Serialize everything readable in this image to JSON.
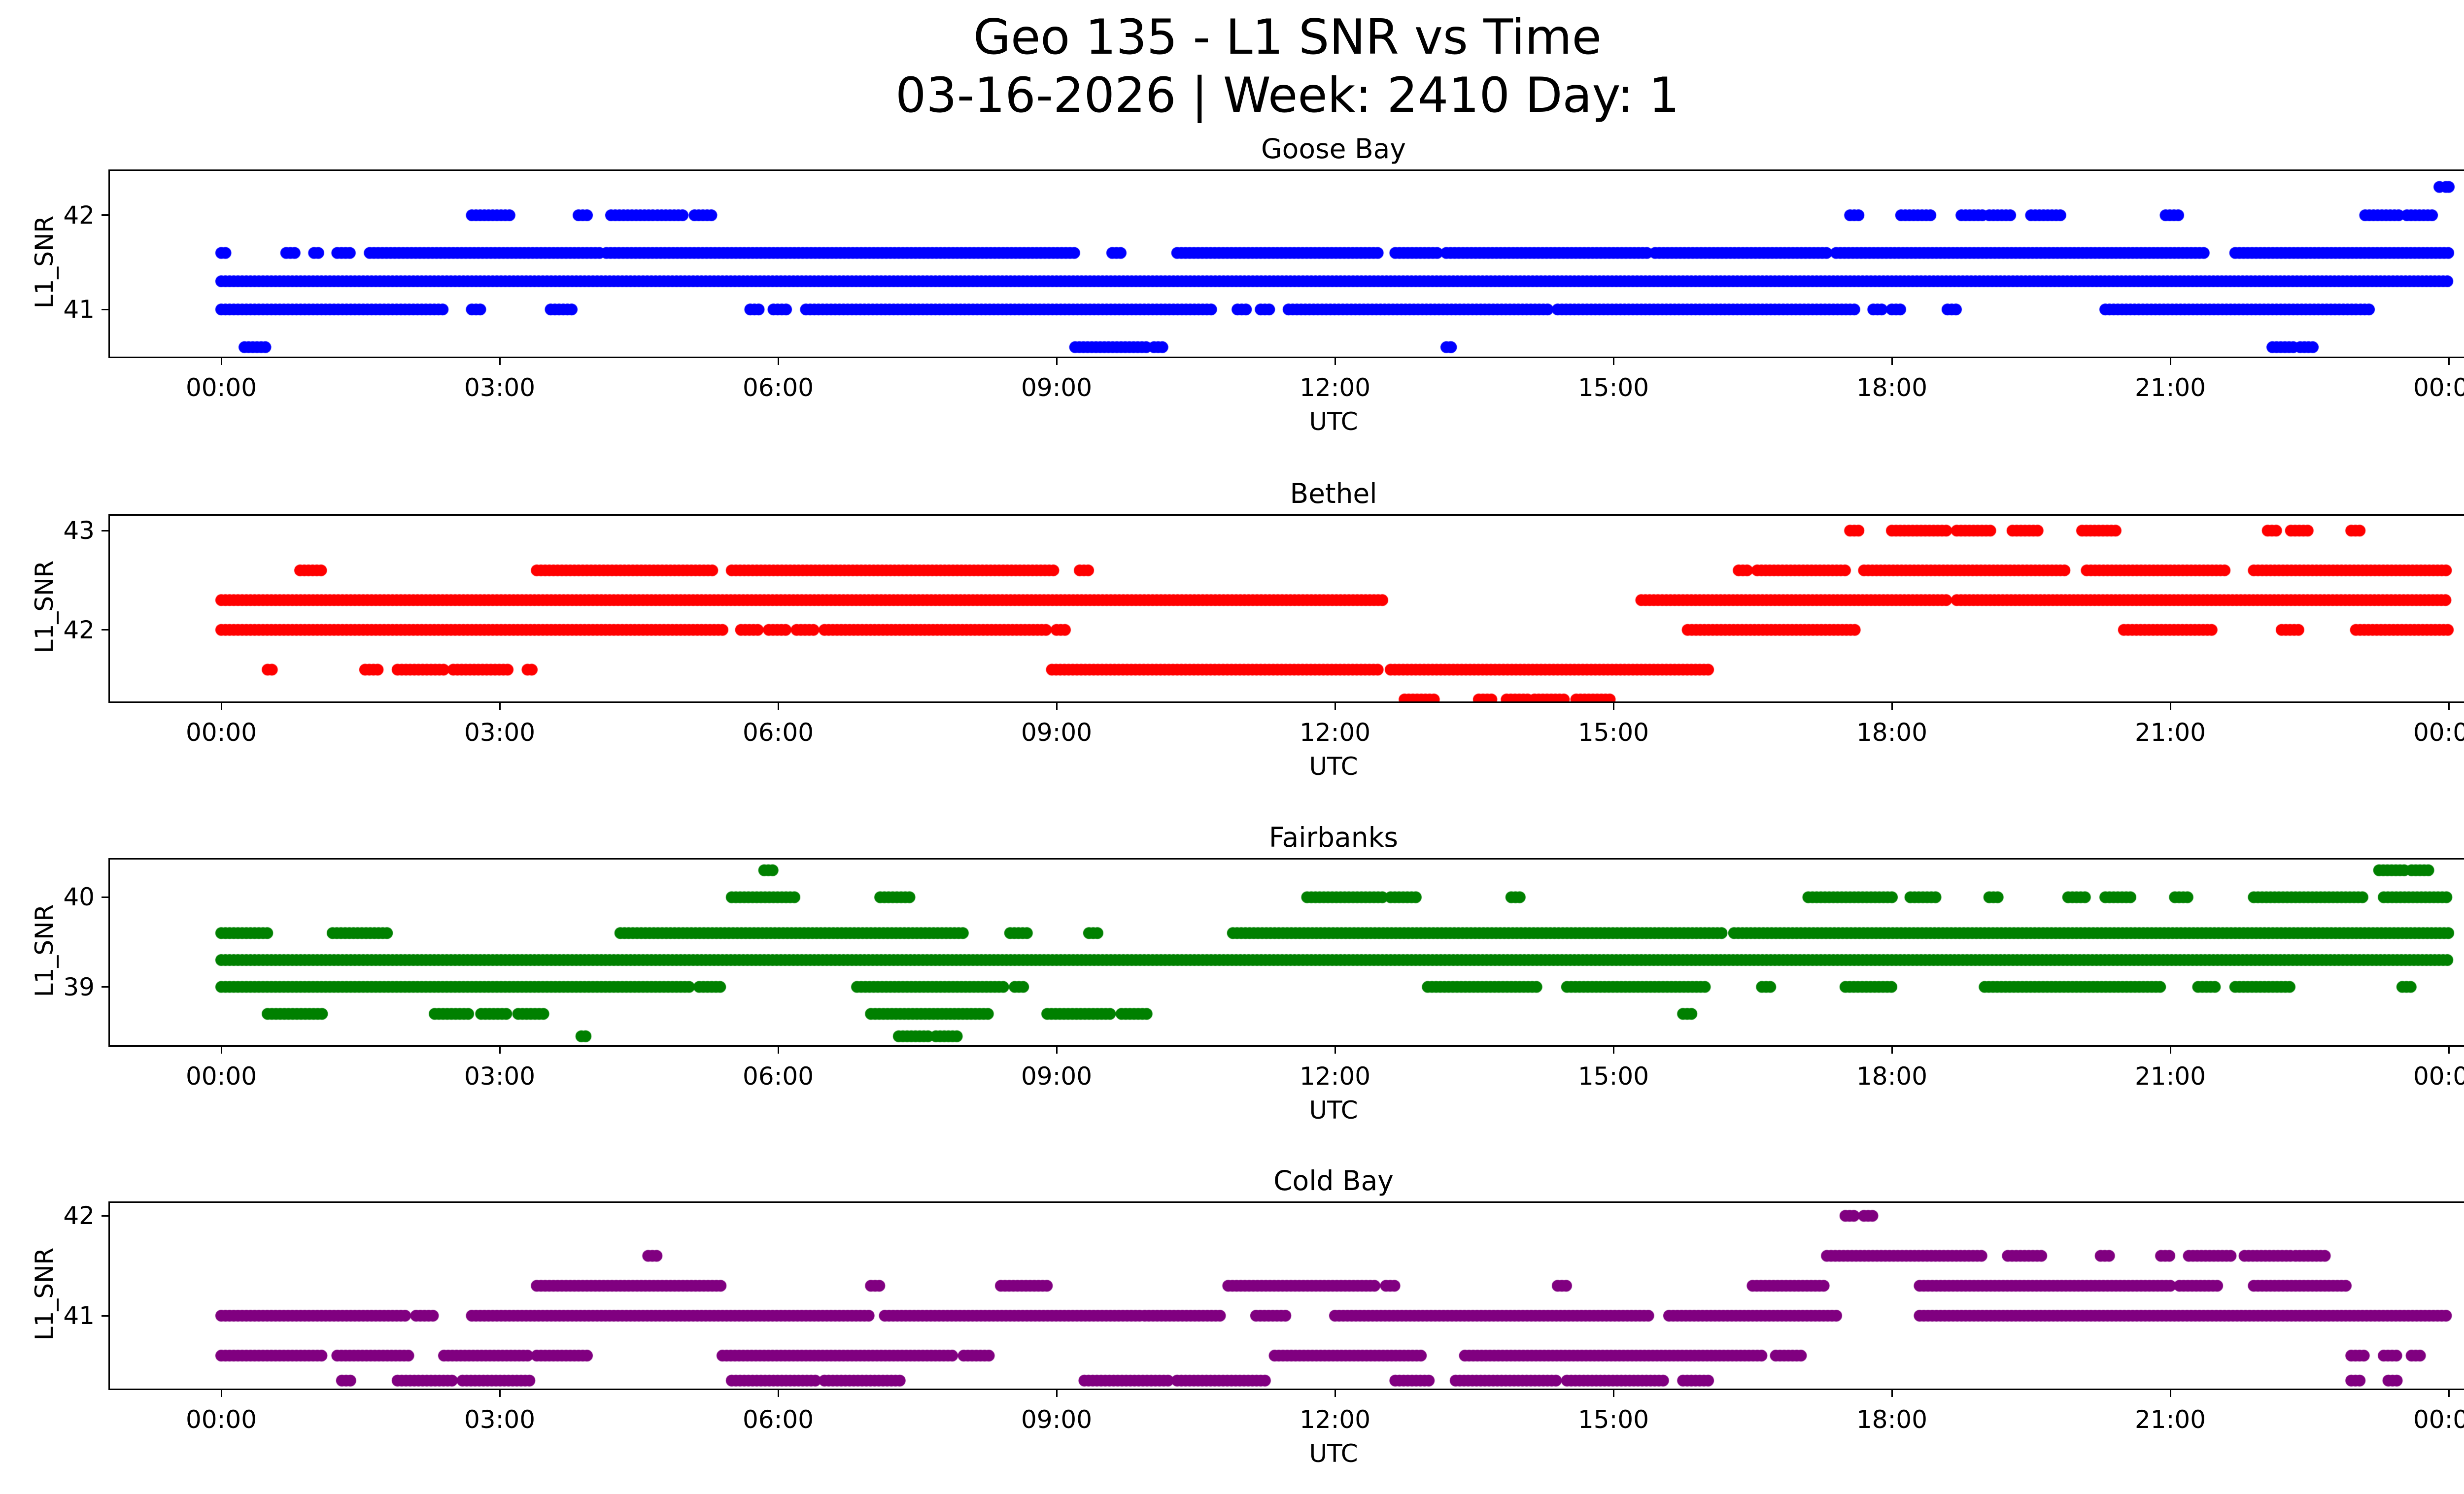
{
  "figure": {
    "title_line1": "Geo 135 - L1 SNR vs Time",
    "title_line2": "03-16-2026 | Week: 2410 Day: 1"
  },
  "chart_data": [
    {
      "type": "scatter",
      "title": "Goose Bay",
      "xlabel": "UTC",
      "ylabel": "L1_SNR",
      "color": "#0000ff",
      "xlim": [
        -1.2,
        25.2
      ],
      "ylim": [
        40.5,
        42.47
      ],
      "xticks": [
        0,
        3,
        6,
        9,
        12,
        15,
        18,
        21,
        24
      ],
      "xtick_labels": [
        "00:00",
        "03:00",
        "06:00",
        "09:00",
        "12:00",
        "15:00",
        "18:00",
        "21:00",
        "00:00"
      ],
      "yticks": [
        41,
        42
      ],
      "ytick_labels": [
        "41",
        "42"
      ],
      "marker_radius": 12,
      "sample_step_hours": 0.045,
      "bands": [
        {
          "snr": 42.0,
          "spans": [
            [
              2.7,
              3.12
            ],
            [
              3.85,
              3.95
            ],
            [
              4.2,
              4.65
            ],
            [
              4.7,
              5.0
            ],
            [
              5.1,
              5.3
            ],
            [
              17.55,
              17.65
            ],
            [
              18.1,
              18.45
            ],
            [
              18.75,
              19.0
            ],
            [
              19.05,
              19.3
            ],
            [
              19.5,
              19.85
            ],
            [
              20.95,
              21.1
            ],
            [
              23.1,
              23.5
            ],
            [
              23.55,
              23.85
            ]
          ]
        },
        {
          "snr": 41.6,
          "spans": [
            [
              0.0,
              0.08
            ],
            [
              0.7,
              0.82
            ],
            [
              1.0,
              1.08
            ],
            [
              1.25,
              1.4
            ],
            [
              1.6,
              4.1
            ],
            [
              4.15,
              9.2
            ],
            [
              9.6,
              9.7
            ],
            [
              10.3,
              12.5
            ],
            [
              12.65,
              13.1
            ],
            [
              13.2,
              15.4
            ],
            [
              15.45,
              17.3
            ],
            [
              17.4,
              21.4
            ],
            [
              21.7,
              24.0
            ]
          ]
        },
        {
          "snr": 41.3,
          "spans": [
            [
              0,
              24
            ]
          ]
        },
        {
          "snr": 41.0,
          "spans": [
            [
              0,
              2.4
            ],
            [
              2.7,
              2.82
            ],
            [
              3.55,
              3.78
            ],
            [
              5.7,
              5.82
            ],
            [
              5.95,
              6.12
            ],
            [
              6.3,
              10.7
            ],
            [
              10.95,
              11.08
            ],
            [
              11.2,
              11.32
            ],
            [
              11.5,
              14.3
            ],
            [
              14.4,
              17.6
            ],
            [
              17.8,
              17.92
            ],
            [
              18.0,
              18.12
            ],
            [
              18.6,
              18.72
            ],
            [
              20.3,
              23.0
            ],
            [
              23.05,
              23.15
            ]
          ]
        },
        {
          "snr": 40.6,
          "spans": [
            [
              0.25,
              0.48
            ],
            [
              9.2,
              10.0
            ],
            [
              10.05,
              10.18
            ],
            [
              13.2,
              13.28
            ],
            [
              22.1,
              22.35
            ],
            [
              22.4,
              22.55
            ]
          ]
        }
      ],
      "points": [
        [
          23.9,
          42.3
        ],
        [
          23.97,
          42.3
        ],
        [
          24.0,
          42.3
        ],
        [
          13.25,
          40.6
        ]
      ]
    },
    {
      "type": "scatter",
      "title": "Bethel",
      "xlabel": "UTC",
      "ylabel": "L1_SNR",
      "color": "#ff0000",
      "xlim": [
        -1.2,
        25.2
      ],
      "ylim": [
        41.28,
        43.15
      ],
      "xticks": [
        0,
        3,
        6,
        9,
        12,
        15,
        18,
        21,
        24
      ],
      "xtick_labels": [
        "00:00",
        "03:00",
        "06:00",
        "09:00",
        "12:00",
        "15:00",
        "18:00",
        "21:00",
        "00:00"
      ],
      "yticks": [
        42,
        43
      ],
      "ytick_labels": [
        "42",
        "43"
      ],
      "marker_radius": 12,
      "sample_step_hours": 0.045,
      "bands": [
        {
          "snr": 43.0,
          "spans": [
            [
              17.55,
              17.68
            ],
            [
              18.0,
              18.6
            ],
            [
              18.7,
              19.1
            ],
            [
              19.3,
              19.58
            ],
            [
              20.05,
              20.42
            ],
            [
              22.05,
              22.18
            ],
            [
              22.3,
              22.5
            ],
            [
              22.95,
              23.08
            ]
          ]
        },
        {
          "snr": 42.6,
          "spans": [
            [
              0.85,
              1.08
            ],
            [
              3.4,
              5.3
            ],
            [
              5.5,
              9.0
            ],
            [
              9.25,
              9.38
            ],
            [
              16.35,
              16.48
            ],
            [
              16.55,
              17.5
            ],
            [
              17.7,
              19.9
            ],
            [
              20.1,
              21.6
            ],
            [
              21.9,
              24.0
            ]
          ]
        },
        {
          "snr": 42.3,
          "spans": [
            [
              0,
              12.55
            ],
            [
              15.3,
              18.6
            ],
            [
              18.7,
              24.0
            ]
          ]
        },
        {
          "snr": 42.0,
          "spans": [
            [
              0,
              5.4
            ],
            [
              5.6,
              5.78
            ],
            [
              5.9,
              6.12
            ],
            [
              6.2,
              6.38
            ],
            [
              6.5,
              8.9
            ],
            [
              9.0,
              9.12
            ],
            [
              15.8,
              17.6
            ],
            [
              20.5,
              21.45
            ],
            [
              22.2,
              22.38
            ],
            [
              23.0,
              24.0
            ]
          ]
        },
        {
          "snr": 41.6,
          "spans": [
            [
              0.5,
              0.58
            ],
            [
              1.55,
              1.72
            ],
            [
              1.9,
              2.4
            ],
            [
              2.5,
              3.1
            ],
            [
              3.3,
              3.38
            ],
            [
              8.95,
              12.5
            ],
            [
              12.6,
              16.05
            ]
          ]
        },
        {
          "snr": 41.3,
          "spans": [
            [
              12.75,
              13.1
            ],
            [
              13.55,
              13.72
            ],
            [
              13.85,
              14.1
            ],
            [
              14.15,
              14.5
            ],
            [
              14.6,
              15.0
            ]
          ]
        }
      ],
      "points": []
    },
    {
      "type": "scatter",
      "title": "Fairbanks",
      "xlabel": "UTC",
      "ylabel": "L1_SNR",
      "color": "#008000",
      "xlim": [
        -1.2,
        25.2
      ],
      "ylim": [
        38.35,
        40.42
      ],
      "xticks": [
        0,
        3,
        6,
        9,
        12,
        15,
        18,
        21,
        24
      ],
      "xtick_labels": [
        "00:00",
        "03:00",
        "06:00",
        "09:00",
        "12:00",
        "15:00",
        "18:00",
        "21:00",
        "00:00"
      ],
      "yticks": [
        39,
        40
      ],
      "ytick_labels": [
        "39",
        "40"
      ],
      "marker_radius": 12,
      "sample_step_hours": 0.045,
      "bands": [
        {
          "snr": 40.3,
          "spans": [
            [
              5.85,
              5.95
            ],
            [
              23.25,
              23.55
            ],
            [
              23.6,
              23.8
            ]
          ]
        },
        {
          "snr": 40.0,
          "spans": [
            [
              5.5,
              6.2
            ],
            [
              7.1,
              7.42
            ],
            [
              11.7,
              12.55
            ],
            [
              12.6,
              12.9
            ],
            [
              13.9,
              14.02
            ],
            [
              17.1,
              18.0
            ],
            [
              18.2,
              18.5
            ],
            [
              19.05,
              19.18
            ],
            [
              19.9,
              20.1
            ],
            [
              20.3,
              20.6
            ],
            [
              21.05,
              21.2
            ],
            [
              21.9,
              23.1
            ],
            [
              23.3,
              24.0
            ]
          ]
        },
        {
          "snr": 39.6,
          "spans": [
            [
              0,
              0.5
            ],
            [
              1.2,
              1.82
            ],
            [
              4.3,
              8.0
            ],
            [
              8.5,
              8.72
            ],
            [
              9.35,
              9.48
            ],
            [
              10.9,
              16.2
            ],
            [
              16.3,
              24.0
            ]
          ]
        },
        {
          "snr": 39.3,
          "spans": [
            [
              0,
              24
            ]
          ]
        },
        {
          "snr": 39.0,
          "spans": [
            [
              0,
              5.05
            ],
            [
              5.15,
              5.38
            ],
            [
              6.85,
              8.45
            ],
            [
              8.55,
              8.65
            ],
            [
              13.0,
              14.2
            ],
            [
              14.5,
              16.0
            ],
            [
              16.6,
              16.7
            ],
            [
              17.5,
              18.0
            ],
            [
              19.0,
              20.9
            ],
            [
              21.3,
              21.52
            ],
            [
              21.7,
              22.3
            ],
            [
              23.5,
              23.62
            ]
          ]
        },
        {
          "snr": 38.7,
          "spans": [
            [
              0.5,
              1.1
            ],
            [
              2.3,
              2.68
            ],
            [
              2.8,
              3.1
            ],
            [
              3.2,
              3.5
            ],
            [
              7.0,
              8.3
            ],
            [
              8.9,
              9.6
            ],
            [
              9.7,
              10.0
            ],
            [
              15.75,
              15.88
            ]
          ]
        },
        {
          "snr": 38.45,
          "spans": [
            [
              3.88,
              3.96
            ],
            [
              7.3,
              7.62
            ],
            [
              7.7,
              7.95
            ]
          ]
        }
      ],
      "points": []
    },
    {
      "type": "scatter",
      "title": "Cold Bay",
      "xlabel": "UTC",
      "ylabel": "L1_SNR",
      "color": "#800080",
      "xlim": [
        -1.2,
        25.2
      ],
      "ylim": [
        40.27,
        42.13
      ],
      "xticks": [
        0,
        3,
        6,
        9,
        12,
        15,
        18,
        21,
        24
      ],
      "xtick_labels": [
        "00:00",
        "03:00",
        "06:00",
        "09:00",
        "12:00",
        "15:00",
        "18:00",
        "21:00",
        "00:00"
      ],
      "yticks": [
        41,
        42
      ],
      "ytick_labels": [
        "41",
        "42"
      ],
      "marker_radius": 12,
      "sample_step_hours": 0.045,
      "bands": [
        {
          "snr": 42.0,
          "spans": [
            [
              17.5,
              17.62
            ],
            [
              17.7,
              17.82
            ]
          ]
        },
        {
          "snr": 41.6,
          "spans": [
            [
              4.6,
              4.72
            ],
            [
              17.3,
              19.0
            ],
            [
              19.25,
              19.62
            ],
            [
              20.25,
              20.38
            ],
            [
              20.9,
              21.02
            ],
            [
              21.2,
              21.68
            ],
            [
              21.8,
              22.3
            ],
            [
              22.35,
              22.68
            ]
          ]
        },
        {
          "snr": 41.3,
          "spans": [
            [
              3.4,
              5.42
            ],
            [
              7.0,
              7.12
            ],
            [
              8.4,
              8.92
            ],
            [
              10.85,
              12.45
            ],
            [
              12.55,
              12.68
            ],
            [
              14.4,
              14.52
            ],
            [
              16.5,
              17.3
            ],
            [
              18.3,
              21.0
            ],
            [
              21.1,
              21.52
            ],
            [
              21.9,
              22.9
            ]
          ]
        },
        {
          "snr": 41.0,
          "spans": [
            [
              0,
              2.0
            ],
            [
              2.1,
              2.28
            ],
            [
              2.7,
              7.0
            ],
            [
              7.15,
              9.9
            ],
            [
              9.95,
              10.8
            ],
            [
              11.15,
              11.48
            ],
            [
              12.0,
              15.4
            ],
            [
              15.6,
              17.4
            ],
            [
              18.3,
              24.0
            ]
          ]
        },
        {
          "snr": 40.6,
          "spans": [
            [
              0,
              1.1
            ],
            [
              1.25,
              2.05
            ],
            [
              2.4,
              3.3
            ],
            [
              3.4,
              3.95
            ],
            [
              5.4,
              7.9
            ],
            [
              8.0,
              8.3
            ],
            [
              11.35,
              12.95
            ],
            [
              13.4,
              16.6
            ],
            [
              16.75,
              17.02
            ],
            [
              22.95,
              23.12
            ],
            [
              23.3,
              23.45
            ],
            [
              23.6,
              23.72
            ]
          ]
        },
        {
          "snr": 40.35,
          "spans": [
            [
              1.3,
              1.42
            ],
            [
              1.9,
              2.5
            ],
            [
              2.6,
              3.35
            ],
            [
              5.5,
              6.4
            ],
            [
              6.5,
              7.35
            ],
            [
              9.3,
              10.2
            ],
            [
              10.3,
              11.25
            ],
            [
              12.65,
              13.05
            ],
            [
              13.3,
              14.4
            ],
            [
              14.5,
              15.55
            ],
            [
              15.75,
              16.02
            ],
            [
              22.95,
              23.08
            ],
            [
              23.35,
              23.48
            ]
          ]
        }
      ],
      "points": []
    }
  ]
}
